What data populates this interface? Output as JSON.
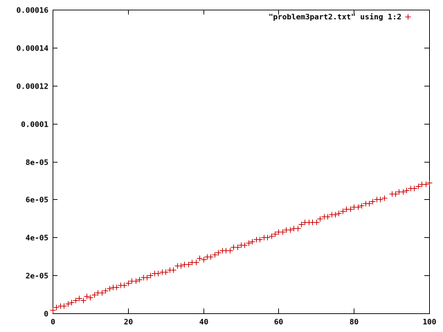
{
  "chart_data": {
    "type": "scatter",
    "title": "",
    "xlabel": "",
    "ylabel": "",
    "xlim": [
      0,
      100
    ],
    "ylim": [
      0,
      0.00016
    ],
    "x_ticks": [
      0,
      20,
      40,
      60,
      80,
      100
    ],
    "x_tick_labels": [
      "0",
      "20",
      "40",
      "60",
      "80",
      "100"
    ],
    "y_ticks": [
      0,
      2e-05,
      4e-05,
      6e-05,
      8e-05,
      0.0001,
      0.00012,
      0.00014,
      0.00016
    ],
    "y_tick_labels": [
      "0",
      "2e-05",
      "4e-05",
      "6e-05",
      "8e-05",
      "0.0001",
      "0.00012",
      "0.00014",
      "0.00016"
    ],
    "grid": false,
    "legend_position": "top-right",
    "series": [
      {
        "name": "\"problem3part2.txt\" using 1:2",
        "color": "#cc0000",
        "marker": "plus",
        "x": [
          0,
          1,
          2,
          3,
          4,
          5,
          6,
          7,
          8,
          9,
          10,
          11,
          12,
          13,
          14,
          15,
          16,
          17,
          18,
          19,
          20,
          21,
          22,
          23,
          24,
          25,
          26,
          27,
          28,
          29,
          30,
          31,
          32,
          33,
          34,
          35,
          36,
          37,
          38,
          39,
          40,
          41,
          42,
          43,
          44,
          45,
          46,
          47,
          48,
          49,
          50,
          51,
          52,
          53,
          54,
          55,
          56,
          57,
          58,
          59,
          60,
          61,
          62,
          63,
          64,
          65,
          66,
          67,
          68,
          69,
          70,
          71,
          72,
          73,
          74,
          75,
          76,
          77,
          78,
          79,
          80,
          81,
          82,
          83,
          84,
          85,
          86,
          87,
          88,
          89,
          90,
          91,
          92,
          93,
          94,
          95,
          96,
          97,
          98,
          99,
          100
        ],
        "y": [
          2e-06,
          3.2e-06,
          3.9e-06,
          4e-06,
          5.2e-06,
          6e-06,
          7e-06,
          8e-06,
          7e-06,
          9e-06,
          8.5e-06,
          1e-05,
          1.1e-05,
          1.1e-05,
          1.2e-05,
          1.3e-05,
          1.4e-05,
          1.4e-05,
          1.5e-05,
          1.5e-05,
          1.6e-05,
          1.7e-05,
          1.7e-05,
          1.8e-05,
          1.9e-05,
          1.9e-05,
          2e-05,
          2.1e-05,
          2.1e-05,
          2.2e-05,
          2.2e-05,
          2.3e-05,
          2.3e-05,
          2.5e-05,
          2.5e-05,
          2.6e-05,
          2.6e-05,
          2.7e-05,
          2.7e-05,
          2.9e-05,
          2.85e-05,
          3e-05,
          3e-05,
          3.1e-05,
          3.2e-05,
          3.3e-05,
          3.3e-05,
          3.3e-05,
          3.5e-05,
          3.5e-05,
          3.6e-05,
          3.6e-05,
          3.7e-05,
          3.8e-05,
          3.9e-05,
          3.9e-05,
          4e-05,
          4e-05,
          4.1e-05,
          4.2e-05,
          4.3e-05,
          4.3e-05,
          4.4e-05,
          4.4e-05,
          4.5e-05,
          4.5e-05,
          4.7e-05,
          4.8e-05,
          4.8e-05,
          4.8e-05,
          4.8e-05,
          5e-05,
          5.1e-05,
          5.1e-05,
          5.2e-05,
          5.2e-05,
          5.3e-05,
          5.4e-05,
          5.5e-05,
          5.5e-05,
          5.6e-05,
          5.6e-05,
          5.7e-05,
          5.8e-05,
          5.8e-05,
          5.9e-05,
          6e-05,
          6e-05,
          6.1e-05,
          null,
          6.3e-05,
          6.3e-05,
          6.4e-05,
          6.4e-05,
          6.5e-05,
          6.6e-05,
          6.6e-05,
          6.7e-05,
          6.8e-05,
          6.8e-05,
          6.9e-05
        ]
      }
    ]
  }
}
